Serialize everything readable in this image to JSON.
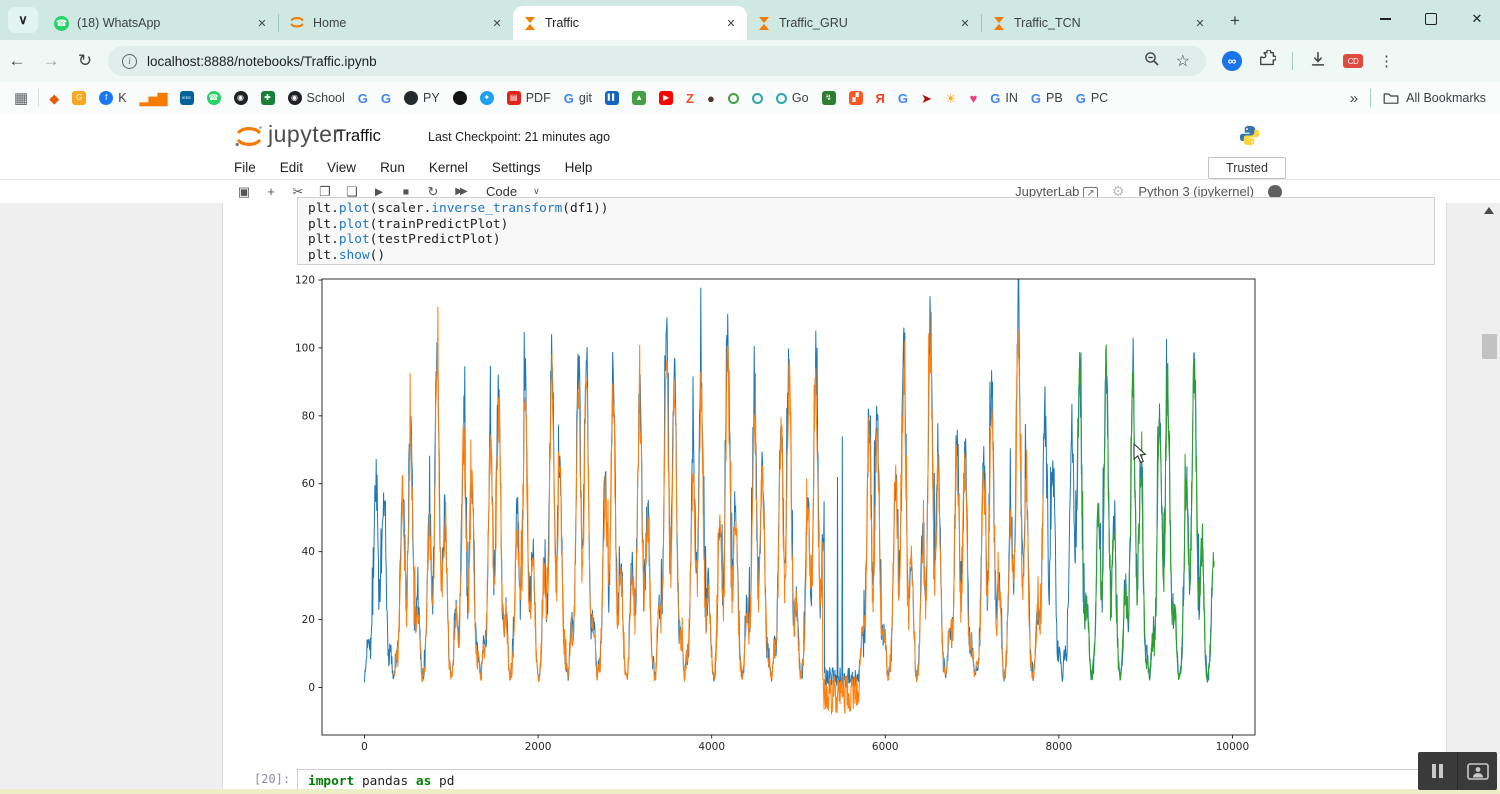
{
  "colors": {
    "tabstrip": "#cfe9e2",
    "accent_orange": "#f57c00",
    "series_blue": "#1f77b4",
    "series_orange": "#ff7f0e",
    "series_green": "#2ca02c"
  },
  "browser": {
    "tabs": [
      {
        "title": "(18) WhatsApp",
        "icon": "whatsapp",
        "active": false
      },
      {
        "title": "Home",
        "icon": "jupyter",
        "active": false
      },
      {
        "title": "Traffic",
        "icon": "hourglass",
        "active": true
      },
      {
        "title": "Traffic_GRU",
        "icon": "hourglass",
        "active": false
      },
      {
        "title": "Traffic_TCN",
        "icon": "hourglass",
        "active": false
      }
    ],
    "close_glyph": "✕",
    "new_tab_glyph": "+",
    "tab_search_glyph": "∨",
    "nav": {
      "back": "←",
      "forward": "→",
      "reload": "↻"
    },
    "url": "localhost:8888/notebooks/Traffic.ipynb",
    "address": {
      "bookmark_star": "☆"
    },
    "extensions": {
      "infinity": "∞",
      "menu_dots": "⋮",
      "red_badge": "CD"
    },
    "bookmarks": {
      "apps_glyph": "▦",
      "items": [
        {
          "g": "◆",
          "c": "#e8590c",
          "sh": "g"
        },
        {
          "g": "G",
          "c": "#fff",
          "bg": "#f6a821",
          "sh": "s"
        },
        {
          "g": "f",
          "c": "#fff",
          "bg": "#1877F2",
          "sh": "c",
          "l": "K"
        },
        {
          "g": "▂▅▇",
          "c": "#f57c00",
          "sh": "g"
        },
        {
          "g": "IEEE",
          "c": "#fff",
          "bg": "#00629B",
          "sh": "s",
          "fs": 4
        },
        {
          "g": "☎",
          "c": "#fff",
          "bg": "#25D366",
          "sh": "c"
        },
        {
          "g": "◉",
          "c": "#fff",
          "bg": "#202124",
          "sh": "c"
        },
        {
          "g": "✚",
          "c": "#fff",
          "bg": "#188038",
          "sh": "s"
        },
        {
          "g": "◉",
          "c": "#fff",
          "bg": "#202124",
          "sh": "c",
          "l": "School"
        },
        {
          "g": "G",
          "c": "#4285F4",
          "sh": "g",
          "b": 1
        },
        {
          "g": "G",
          "c": "#4285F4",
          "sh": "g",
          "b": 1
        },
        {
          "g": "",
          "c": "#fff",
          "bg": "#24292f",
          "sh": "c",
          "l": "PY"
        },
        {
          "g": "",
          "c": "#fff",
          "bg": "#141414",
          "sh": "c"
        },
        {
          "g": "✦",
          "c": "#fff",
          "bg": "#1DA1F2",
          "sh": "c"
        },
        {
          "g": "▤",
          "c": "#fff",
          "bg": "#E2231A",
          "sh": "s",
          "l": "PDF"
        },
        {
          "g": "G",
          "c": "#4285F4",
          "sh": "g",
          "b": 1,
          "l": "git"
        },
        {
          "g": "▌▌",
          "c": "#fff",
          "bg": "#1565C0",
          "sh": "s",
          "fs": 6
        },
        {
          "g": "▲",
          "c": "#fff",
          "bg": "#43A047",
          "sh": "s"
        },
        {
          "g": "▶",
          "c": "#fff",
          "bg": "#FF0000",
          "sh": "s"
        },
        {
          "g": "Z",
          "c": "#F4511E",
          "sh": "g",
          "b": 1
        },
        {
          "g": "●",
          "c": "#4E342E",
          "sh": "g"
        },
        {
          "g": "",
          "c": "#43A047",
          "sh": "r"
        },
        {
          "g": "",
          "c": "#2bA8AB",
          "sh": "r"
        },
        {
          "g": "",
          "c": "#2bA8AB",
          "sh": "r",
          "l": "Go"
        },
        {
          "g": "↯",
          "c": "#fff",
          "bg": "#2E7D32",
          "sh": "s"
        },
        {
          "g": "▞",
          "c": "#fff",
          "bg": "#FF5722",
          "sh": "s"
        },
        {
          "g": "Я",
          "c": "#FC3F1D",
          "sh": "g",
          "b": 1
        },
        {
          "g": "G",
          "c": "#4285F4",
          "sh": "g",
          "b": 1
        },
        {
          "g": "➤",
          "c": "#A31515",
          "sh": "g"
        },
        {
          "g": "☀",
          "c": "#F9A825",
          "sh": "g"
        },
        {
          "g": "♥",
          "c": "#EC407A",
          "sh": "g"
        },
        {
          "g": "G",
          "c": "#4285F4",
          "sh": "g",
          "b": 1,
          "l": "IN"
        },
        {
          "g": "G",
          "c": "#4285F4",
          "sh": "g",
          "b": 1,
          "l": "PB"
        },
        {
          "g": "G",
          "c": "#4285F4",
          "sh": "g",
          "b": 1,
          "l": "PC"
        }
      ],
      "overflow": "»",
      "all_bookmarks": "All Bookmarks"
    }
  },
  "notebook": {
    "brand": "jupyter",
    "title": "Traffic",
    "checkpoint": "Last Checkpoint: 21 minutes ago",
    "menu": [
      "File",
      "Edit",
      "View",
      "Run",
      "Kernel",
      "Settings",
      "Help"
    ],
    "trusted": "Trusted",
    "toolbar": {
      "buttons": [
        {
          "name": "save",
          "g": "▣"
        },
        {
          "name": "insert-cell-below",
          "g": "+"
        },
        {
          "name": "cut-cell",
          "g": "✂"
        },
        {
          "name": "copy-cell",
          "g": "❐"
        },
        {
          "name": "paste-cell",
          "g": "❏"
        },
        {
          "name": "run-cell",
          "g": "▶"
        },
        {
          "name": "interrupt-kernel",
          "g": "■"
        },
        {
          "name": "restart-kernel",
          "g": "↻"
        },
        {
          "name": "run-all-cells",
          "g": "▶▶"
        }
      ],
      "celltype": "Code",
      "celltype_caret": "∨",
      "jupyterlab": "JupyterLab",
      "extlink_glyph": "↗",
      "gear": "⚙",
      "kernel": "Python 3 (ipykernel)"
    },
    "cells": {
      "top_code": {
        "lines": [
          [
            [
              "plt.",
              "v"
            ],
            [
              "plot",
              "f"
            ],
            [
              "(scaler.",
              "v"
            ],
            [
              "inverse_transform",
              "f"
            ],
            [
              "(df1))",
              "v"
            ]
          ],
          [
            [
              "plt.",
              "v"
            ],
            [
              "plot",
              "f"
            ],
            [
              "(trainPredictPlot)",
              "v"
            ]
          ],
          [
            [
              "plt.",
              "v"
            ],
            [
              "plot",
              "f"
            ],
            [
              "(testPredictPlot)",
              "v"
            ]
          ],
          [
            [
              "plt.",
              "v"
            ],
            [
              "show",
              "f"
            ],
            [
              "()",
              "v"
            ]
          ]
        ]
      },
      "bottom_code": {
        "prompt": "[20]:",
        "lines": [
          [
            [
              "import",
              "k"
            ],
            [
              " pandas ",
              "v"
            ],
            [
              "as",
              "k"
            ],
            [
              " pd",
              "v"
            ]
          ]
        ]
      }
    }
  },
  "chart_data": {
    "type": "line",
    "title": "",
    "xlabel": "",
    "ylabel": "",
    "xlim": [
      -490,
      10260
    ],
    "ylim": [
      -14,
      120.3
    ],
    "xticks": [
      0,
      2000,
      4000,
      6000,
      8000,
      10000
    ],
    "yticks": [
      0,
      20,
      40,
      60,
      80,
      100,
      120
    ],
    "grid": false,
    "legend": null,
    "series": [
      {
        "name": "scaler.inverse_transform(df1)",
        "color": "#1f77b4",
        "x_start": 0,
        "x_end": 9770,
        "scale": 1.0,
        "min": 1,
        "anomaly": {
          "x_start": 5300,
          "x_end": 5690,
          "low": 0,
          "high": 6
        },
        "anomaly_spikes": [
          [
            5450,
            62
          ],
          [
            5505,
            74
          ]
        ]
      },
      {
        "name": "trainPredictPlot",
        "color": "#ff7f0e",
        "x_start": 340,
        "x_end": 7820,
        "scale": 0.93,
        "min": 0,
        "anomaly": {
          "x_start": 5280,
          "x_end": 5700,
          "low": -8,
          "high": 4
        },
        "anomaly_spikes": []
      },
      {
        "name": "testPredictPlot",
        "color": "#2ca02c",
        "x_start": 8210,
        "x_end": 9790,
        "scale": 0.97,
        "min": 1,
        "anomaly": null,
        "anomaly_spikes": []
      }
    ],
    "pattern": {
      "period": 335,
      "step": 5,
      "seed": 7,
      "base": 3,
      "cycle_peaks": [
        64,
        78,
        96,
        80,
        93,
        86,
        97,
        110,
        92,
        85,
        114,
        94,
        99,
        87,
        101,
        95,
        112,
        90,
        97,
        106,
        80,
        91,
        108,
        84,
        97,
        93,
        89,
        99,
        96,
        90
      ]
    }
  }
}
